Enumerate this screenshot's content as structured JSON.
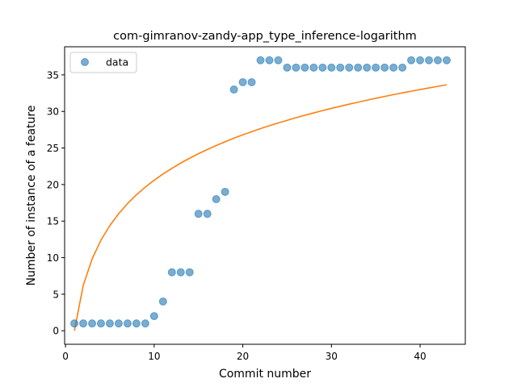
{
  "chart_data": {
    "type": "scatter",
    "title": "com-gimranov-zandy-app_type_inference-logarithm",
    "xlabel": "Commit number",
    "ylabel": "Number of instance of a feature",
    "xlim": [
      -0.1,
      45.1
    ],
    "ylim": [
      -1.85,
      38.85
    ],
    "xticks": [
      0,
      10,
      20,
      30,
      40
    ],
    "yticks": [
      0,
      5,
      10,
      15,
      20,
      25,
      30,
      35
    ],
    "legend": {
      "placement": "upper-left",
      "entries": [
        "data"
      ]
    },
    "grid": false,
    "series": [
      {
        "name": "data",
        "kind": "scatter",
        "color": "#1f77b4",
        "x": [
          1,
          2,
          3,
          4,
          5,
          6,
          7,
          8,
          9,
          10,
          11,
          12,
          13,
          14,
          15,
          16,
          17,
          18,
          19,
          20,
          21,
          22,
          23,
          24,
          25,
          26,
          27,
          28,
          29,
          30,
          31,
          32,
          33,
          34,
          35,
          36,
          37,
          38,
          39,
          40,
          41,
          42,
          43
        ],
        "y": [
          1,
          1,
          1,
          1,
          1,
          1,
          1,
          1,
          1,
          2,
          4,
          8,
          8,
          8,
          16,
          16,
          18,
          19,
          33,
          34,
          34,
          37,
          37,
          37,
          36,
          36,
          36,
          36,
          36,
          36,
          36,
          36,
          36,
          36,
          36,
          36,
          36,
          36,
          37,
          37,
          37,
          37,
          37
        ]
      },
      {
        "kind": "line",
        "color": "#ff7f0e",
        "fit": "logarithmic",
        "x": [
          1,
          2,
          3,
          4,
          5,
          6,
          7,
          8,
          9,
          10,
          11,
          12,
          13,
          14,
          15,
          16,
          17,
          18,
          19,
          20,
          21,
          22,
          23,
          24,
          25,
          26,
          27,
          28,
          29,
          30,
          31,
          32,
          33,
          34,
          35,
          36,
          37,
          38,
          39,
          40,
          41,
          42,
          43
        ],
        "y": [
          0.0,
          6.2,
          9.83,
          12.4,
          14.39,
          16.02,
          17.4,
          18.6,
          19.65,
          20.59,
          21.44,
          22.22,
          22.94,
          23.6,
          24.22,
          24.8,
          25.34,
          25.85,
          26.34,
          26.8,
          27.23,
          27.65,
          28.05,
          28.43,
          28.79,
          29.14,
          29.48,
          29.8,
          30.12,
          30.42,
          30.71,
          31.0,
          31.27,
          31.54,
          31.8,
          32.05,
          32.3,
          32.54,
          32.77,
          33.0,
          33.22,
          33.43,
          33.65
        ]
      }
    ]
  }
}
